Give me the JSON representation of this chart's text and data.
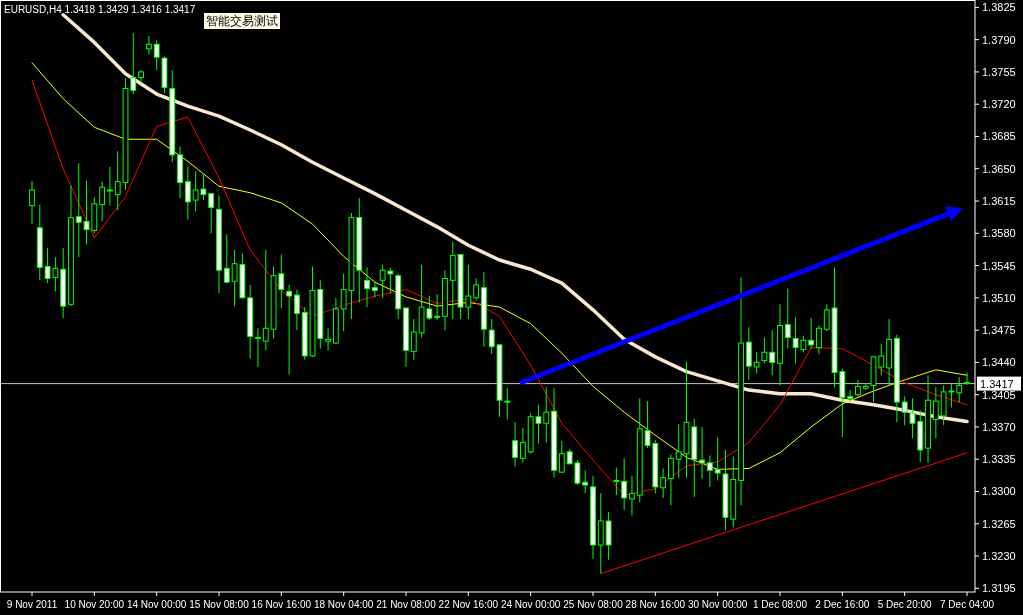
{
  "chart_data": {
    "type": "candlestick",
    "title": "EURUSD,H4  1.3418 1.3429 1.3416 1.3417",
    "annotations": [
      "智能交易测试"
    ],
    "categories": [
      "9 Nov 2011",
      null,
      null,
      null,
      null,
      null,
      null,
      null,
      "10 Nov 20:00",
      null,
      null,
      null,
      null,
      null,
      null,
      null,
      "14 Nov 00:00",
      null,
      null,
      null,
      null,
      null,
      null,
      null,
      "15 Nov 08:00",
      null,
      null,
      null,
      null,
      null,
      null,
      null,
      "16 Nov 16:00",
      null,
      null,
      null,
      null,
      null,
      null,
      null,
      "18 Nov 04:00",
      null,
      null,
      null,
      null,
      null,
      null,
      null,
      "21 Nov 08:00",
      null,
      null,
      null,
      null,
      null,
      null,
      null,
      "22 Nov 16:00",
      null,
      null,
      null,
      null,
      null,
      null,
      null,
      "24 Nov 00:00",
      null,
      null,
      null,
      null,
      null,
      null,
      null,
      "25 Nov 08:00",
      null,
      null,
      null,
      null,
      null,
      null,
      null,
      "28 Nov 16:00",
      null,
      null,
      null,
      null,
      null,
      null,
      null,
      "30 Nov 00:00",
      null,
      null,
      null,
      null,
      null,
      null,
      null,
      "1 Dec 08:00",
      null,
      null,
      null,
      null,
      null,
      null,
      null,
      "2 Dec 16:00",
      null,
      null,
      null,
      null,
      null,
      null,
      null,
      "5 Dec 20:00",
      null,
      null,
      null,
      null,
      null,
      null,
      null,
      "7 Dec 04:00"
    ],
    "ohlc": [
      [
        1.361,
        1.3637,
        1.359,
        1.3627
      ],
      [
        1.3586,
        1.3611,
        1.3529,
        1.3543
      ],
      [
        1.3544,
        1.3564,
        1.3526,
        1.3531
      ],
      [
        1.3532,
        1.3554,
        1.3517,
        1.3542
      ],
      [
        1.3541,
        1.3564,
        1.3488,
        1.3501
      ],
      [
        1.3503,
        1.3632,
        1.3501,
        1.3597
      ],
      [
        1.3598,
        1.3656,
        1.3554,
        1.3592
      ],
      [
        1.3593,
        1.3637,
        1.3568,
        1.3584
      ],
      [
        1.3583,
        1.3619,
        1.358,
        1.3612
      ],
      [
        1.3611,
        1.3636,
        1.3593,
        1.363
      ],
      [
        1.3627,
        1.3652,
        1.361,
        1.3626
      ],
      [
        1.3622,
        1.3669,
        1.3605,
        1.3636
      ],
      [
        1.3635,
        1.3748,
        1.3627,
        1.3737
      ],
      [
        1.3749,
        1.3797,
        1.3731,
        1.3735
      ],
      [
        1.3749,
        1.3757,
        1.3743,
        1.3755
      ],
      [
        1.378,
        1.3794,
        1.3774,
        1.3785
      ],
      [
        1.3785,
        1.3789,
        1.3757,
        1.3771
      ],
      [
        1.377,
        1.3772,
        1.3732,
        1.3738
      ],
      [
        1.3737,
        1.3757,
        1.3657,
        1.3665
      ],
      [
        1.3665,
        1.3674,
        1.3618,
        1.3635
      ],
      [
        1.3636,
        1.3652,
        1.3595,
        1.3614
      ],
      [
        1.3616,
        1.3647,
        1.3604,
        1.3627
      ],
      [
        1.3628,
        1.3644,
        1.3616,
        1.3622
      ],
      [
        1.3623,
        1.3623,
        1.358,
        1.3608
      ],
      [
        1.3606,
        1.3621,
        1.3515,
        1.354
      ],
      [
        1.3542,
        1.3579,
        1.3526,
        1.3527
      ],
      [
        1.3528,
        1.3562,
        1.3501,
        1.3547
      ],
      [
        1.3546,
        1.3558,
        1.351,
        1.351
      ],
      [
        1.351,
        1.3524,
        1.3444,
        1.3468
      ],
      [
        1.3467,
        1.3477,
        1.3435,
        1.3466
      ],
      [
        1.3463,
        1.3562,
        1.3453,
        1.3477
      ],
      [
        1.3476,
        1.3544,
        1.3466,
        1.3534
      ],
      [
        1.3536,
        1.3557,
        1.3499,
        1.3519
      ],
      [
        1.3517,
        1.3524,
        1.3427,
        1.3512
      ],
      [
        1.3513,
        1.3519,
        1.3475,
        1.3493
      ],
      [
        1.3494,
        1.35,
        1.3443,
        1.3447
      ],
      [
        1.3447,
        1.3544,
        1.3446,
        1.3518
      ],
      [
        1.3519,
        1.3529,
        1.3455,
        1.3466
      ],
      [
        1.3463,
        1.3477,
        1.3453,
        1.3465
      ],
      [
        1.3461,
        1.351,
        1.346,
        1.3498
      ],
      [
        1.3498,
        1.3536,
        1.3474,
        1.3519
      ],
      [
        1.3518,
        1.3602,
        1.3487,
        1.3597
      ],
      [
        1.3597,
        1.3618,
        1.3505,
        1.354
      ],
      [
        1.3529,
        1.3543,
        1.35,
        1.352
      ],
      [
        1.3521,
        1.3528,
        1.351,
        1.3518
      ],
      [
        1.3529,
        1.3546,
        1.351,
        1.354
      ],
      [
        1.3539,
        1.3543,
        1.3515,
        1.3536
      ],
      [
        1.3534,
        1.3536,
        1.3487,
        1.3498
      ],
      [
        1.3499,
        1.35,
        1.3435,
        1.3453
      ],
      [
        1.3452,
        1.3487,
        1.3443,
        1.3473
      ],
      [
        1.3472,
        1.3546,
        1.3467,
        1.35
      ],
      [
        1.3498,
        1.3512,
        1.3486,
        1.3488
      ],
      [
        1.349,
        1.3514,
        1.3486,
        1.3489
      ],
      [
        1.349,
        1.354,
        1.3475,
        1.3531
      ],
      [
        1.3529,
        1.3571,
        1.3487,
        1.3556
      ],
      [
        1.3557,
        1.3557,
        1.3487,
        1.35
      ],
      [
        1.35,
        1.3546,
        1.3487,
        1.3512
      ],
      [
        1.351,
        1.3531,
        1.3507,
        1.3524
      ],
      [
        1.3521,
        1.3538,
        1.3457,
        1.3476
      ],
      [
        1.3475,
        1.3487,
        1.3449,
        1.3457
      ],
      [
        1.3459,
        1.346,
        1.3381,
        1.3399
      ],
      [
        1.3398,
        1.3412,
        1.3378,
        1.3397
      ],
      [
        1.3355,
        1.3375,
        1.3327,
        1.3337
      ],
      [
        1.3336,
        1.3369,
        1.3331,
        1.3353
      ],
      [
        1.3343,
        1.3385,
        1.3341,
        1.3381
      ],
      [
        1.3381,
        1.3394,
        1.3352,
        1.3374
      ],
      [
        1.3374,
        1.3413,
        1.3353,
        1.3386
      ],
      [
        1.3387,
        1.3412,
        1.3315,
        1.3323
      ],
      [
        1.3321,
        1.3355,
        1.332,
        1.3341
      ],
      [
        1.3343,
        1.3346,
        1.333,
        1.333
      ],
      [
        1.3331,
        1.3334,
        1.3307,
        1.3309
      ],
      [
        1.331,
        1.3323,
        1.3298,
        1.3307
      ],
      [
        1.3305,
        1.3317,
        1.3227,
        1.3242
      ],
      [
        1.3242,
        1.3298,
        1.3211,
        1.3268
      ],
      [
        1.3268,
        1.3278,
        1.3226,
        1.3242
      ],
      [
        1.3312,
        1.3326,
        1.3296,
        1.3311
      ],
      [
        1.3311,
        1.3336,
        1.328,
        1.3293
      ],
      [
        1.3292,
        1.3317,
        1.3274,
        1.3298
      ],
      [
        1.3296,
        1.3401,
        1.3288,
        1.3368
      ],
      [
        1.3366,
        1.3398,
        1.3347,
        1.335
      ],
      [
        1.3352,
        1.3356,
        1.3298,
        1.3305
      ],
      [
        1.3304,
        1.3325,
        1.3293,
        1.3315
      ],
      [
        1.3314,
        1.334,
        1.3285,
        1.3336
      ],
      [
        1.3335,
        1.3373,
        1.3315,
        1.3343
      ],
      [
        1.3341,
        1.3441,
        1.3315,
        1.3375
      ],
      [
        1.337,
        1.3379,
        1.3294,
        1.3335
      ],
      [
        1.3334,
        1.337,
        1.3314,
        1.3331
      ],
      [
        1.3331,
        1.3339,
        1.3305,
        1.3323
      ],
      [
        1.3324,
        1.3359,
        1.3312,
        1.332
      ],
      [
        1.3319,
        1.3345,
        1.3258,
        1.3272
      ],
      [
        1.327,
        1.3338,
        1.3261,
        1.3313
      ],
      [
        1.3312,
        1.3532,
        1.3285,
        1.3461
      ],
      [
        1.3462,
        1.3478,
        1.3421,
        1.3436
      ],
      [
        1.3435,
        1.3451,
        1.3428,
        1.344
      ],
      [
        1.3442,
        1.3467,
        1.3439,
        1.3451
      ],
      [
        1.3451,
        1.3475,
        1.3426,
        1.344
      ],
      [
        1.3439,
        1.3503,
        1.3415,
        1.348
      ],
      [
        1.3481,
        1.352,
        1.3455,
        1.3467
      ],
      [
        1.3466,
        1.3489,
        1.3439,
        1.3456
      ],
      [
        1.3454,
        1.3469,
        1.3451,
        1.3464
      ],
      [
        1.3464,
        1.3488,
        1.3455,
        1.3459
      ],
      [
        1.3456,
        1.348,
        1.3449,
        1.3477
      ],
      [
        1.3476,
        1.3503,
        1.3474,
        1.3497
      ],
      [
        1.3499,
        1.3543,
        1.3413,
        1.3429
      ],
      [
        1.343,
        1.3433,
        1.3359,
        1.3402
      ],
      [
        1.3403,
        1.341,
        1.3397,
        1.3401
      ],
      [
        1.3405,
        1.3421,
        1.3403,
        1.3414
      ],
      [
        1.3412,
        1.3417,
        1.341,
        1.3414
      ],
      [
        1.3415,
        1.3447,
        1.3397,
        1.3446
      ],
      [
        1.3435,
        1.346,
        1.3426,
        1.3447
      ],
      [
        1.3434,
        1.3487,
        1.3415,
        1.3465
      ],
      [
        1.3466,
        1.347,
        1.3375,
        1.3397
      ],
      [
        1.3397,
        1.3403,
        1.3372,
        1.3386
      ],
      [
        1.3385,
        1.3401,
        1.3358,
        1.3374
      ],
      [
        1.3376,
        1.3388,
        1.3332,
        1.3345
      ],
      [
        1.3347,
        1.3426,
        1.3331,
        1.3399
      ],
      [
        1.3378,
        1.3413,
        1.3358,
        1.3398
      ],
      [
        1.3382,
        1.3415,
        1.3372,
        1.3408
      ],
      [
        1.3408,
        1.3417,
        1.3391,
        1.3409
      ],
      [
        1.3407,
        1.3424,
        1.3397,
        1.3415
      ],
      [
        1.3418,
        1.3429,
        1.3416,
        1.3417
      ]
    ],
    "series": [
      {
        "type": "line",
        "color": "#fbe6d0",
        "values": [
          null,
          null,
          null,
          null,
          1.3817,
          null,
          null,
          null,
          1.3787,
          null,
          null,
          null,
          1.3753,
          null,
          null,
          null,
          1.3731,
          null,
          null,
          null,
          1.3718,
          null,
          null,
          null,
          1.3707,
          null,
          null,
          null,
          1.3692,
          null,
          null,
          null,
          1.3676,
          null,
          null,
          null,
          1.3657,
          null,
          null,
          null,
          1.364,
          null,
          null,
          null,
          1.3623,
          null,
          null,
          null,
          1.3605,
          null,
          null,
          null,
          1.3587,
          null,
          null,
          null,
          1.3567,
          null,
          null,
          null,
          1.3551,
          null,
          null,
          null,
          1.3541,
          null,
          null,
          null,
          1.3526,
          null,
          null,
          null,
          1.3497,
          null,
          null,
          null,
          1.3465,
          null,
          null,
          null,
          1.3446,
          null,
          null,
          null,
          1.343,
          null,
          null,
          null,
          1.342,
          null,
          null,
          null,
          1.341,
          null,
          null,
          null,
          1.3406,
          null,
          null,
          null,
          1.3406,
          null,
          null,
          null,
          1.3399,
          null,
          null,
          null,
          1.3394,
          null,
          null,
          null,
          1.3388,
          null,
          null,
          null,
          1.3381,
          null,
          null,
          null,
          1.3376
        ]
      },
      {
        "type": "line",
        "color": "#ffff00",
        "values": [
          1.3765,
          null,
          null,
          null,
          1.3726,
          null,
          null,
          null,
          1.3695,
          null,
          null,
          null,
          1.3682,
          null,
          null,
          null,
          1.3682,
          null,
          null,
          null,
          1.3658,
          null,
          null,
          null,
          1.3631,
          null,
          null,
          null,
          1.3624,
          null,
          null,
          null,
          1.3613,
          null,
          null,
          null,
          1.359,
          null,
          null,
          null,
          1.3555,
          null,
          null,
          null,
          1.3527,
          null,
          null,
          null,
          1.3511,
          null,
          null,
          null,
          1.3501,
          null,
          null,
          null,
          1.3505,
          null,
          null,
          null,
          1.35,
          null,
          null,
          null,
          1.3482,
          null,
          null,
          null,
          1.345,
          null,
          null,
          null,
          1.3414,
          null,
          null,
          null,
          1.3386,
          null,
          null,
          null,
          1.3361,
          null,
          null,
          null,
          1.3337,
          null,
          null,
          null,
          1.3324,
          null,
          null,
          null,
          1.3325,
          null,
          null,
          null,
          1.3342,
          null,
          null,
          null,
          1.337,
          null,
          null,
          null,
          1.3395,
          null,
          null,
          null,
          1.3409,
          null,
          null,
          null,
          1.3421,
          null,
          null,
          null,
          1.3432,
          null,
          null,
          null,
          1.3426
        ]
      },
      {
        "type": "line",
        "color": "#ff0000",
        "values": [
          1.3746,
          null,
          null,
          null,
          1.365,
          null,
          null,
          null,
          1.3575,
          null,
          null,
          null,
          1.362,
          null,
          null,
          null,
          1.3696,
          null,
          null,
          null,
          1.3706,
          null,
          null,
          null,
          1.364,
          null,
          null,
          null,
          1.3562,
          null,
          null,
          null,
          1.3518,
          null,
          null,
          null,
          1.349,
          null,
          null,
          null,
          1.3502,
          null,
          null,
          null,
          1.3512,
          null,
          null,
          null,
          1.3519,
          null,
          null,
          null,
          1.3504,
          null,
          null,
          null,
          1.3509,
          null,
          null,
          null,
          1.349,
          null,
          null,
          null,
          1.3437,
          null,
          null,
          null,
          1.3374,
          null,
          null,
          null,
          1.3334,
          null,
          null,
          null,
          1.3296,
          null,
          null,
          null,
          1.3303,
          null,
          null,
          null,
          1.3328,
          null,
          null,
          null,
          1.3332,
          null,
          null,
          null,
          1.3353,
          null,
          null,
          null,
          1.3394,
          null,
          null,
          null,
          1.3456,
          null,
          null,
          null,
          1.3455,
          null,
          null,
          null,
          1.3437,
          null,
          null,
          null,
          1.3418,
          null,
          null,
          null,
          1.3405,
          null,
          null,
          null,
          1.3394
        ]
      },
      {
        "type": "line",
        "color": "#ff0000",
        "values": [
          null,
          null,
          null,
          null,
          null,
          null,
          null,
          null,
          null,
          null,
          null,
          null,
          null,
          null,
          null,
          null,
          null,
          null,
          null,
          null,
          null,
          null,
          null,
          null,
          null,
          null,
          null,
          null,
          null,
          null,
          null,
          null,
          null,
          null,
          null,
          null,
          null,
          null,
          null,
          null,
          null,
          null,
          null,
          null,
          null,
          null,
          null,
          null,
          null,
          null,
          null,
          null,
          null,
          null,
          null,
          null,
          null,
          null,
          null,
          null,
          null,
          null,
          null,
          null,
          null,
          null,
          null,
          null,
          null,
          null,
          null,
          null,
          null,
          1.3211,
          null,
          null,
          null,
          null,
          null,
          null,
          null,
          null,
          null,
          null,
          null,
          null,
          null,
          null,
          null,
          null,
          null,
          null,
          null,
          null,
          null,
          null,
          null,
          null,
          null,
          null,
          null,
          null,
          null,
          null,
          null,
          null,
          null,
          null,
          null,
          null,
          null,
          null,
          null,
          null,
          null,
          null,
          null,
          null,
          null,
          null,
          1.3342
        ]
      }
    ],
    "ylim": [
      1.3191,
      1.3833
    ],
    "yticks": [
      {
        "value": 1.3825,
        "label": "1.3825"
      },
      {
        "value": 1.379,
        "label": "1.3790"
      },
      {
        "value": 1.3755,
        "label": "1.3755"
      },
      {
        "value": 1.372,
        "label": "1.3720"
      },
      {
        "value": 1.3685,
        "label": "1.3685"
      },
      {
        "value": 1.365,
        "label": "1.3650"
      },
      {
        "value": 1.3615,
        "label": "1.3615"
      },
      {
        "value": 1.358,
        "label": "1.3580"
      },
      {
        "value": 1.3545,
        "label": "1.3545"
      },
      {
        "value": 1.351,
        "label": "1.3510"
      },
      {
        "value": 1.3475,
        "label": "1.3475"
      },
      {
        "value": 1.344,
        "label": "1.3440"
      },
      {
        "value": 1.3405,
        "label": "1.3405"
      },
      {
        "value": 1.337,
        "label": "1.3370"
      },
      {
        "value": 1.3335,
        "label": "1.3335"
      },
      {
        "value": 1.33,
        "label": "1.3300"
      },
      {
        "value": 1.3265,
        "label": "1.3265"
      },
      {
        "value": 1.323,
        "label": "1.3230"
      },
      {
        "value": 1.3195,
        "label": "1.3195"
      }
    ],
    "ref_lines": [
      {
        "axis": "y",
        "value": 1.3417,
        "label": "1.3417",
        "color": "#c0c0c0"
      }
    ]
  }
}
